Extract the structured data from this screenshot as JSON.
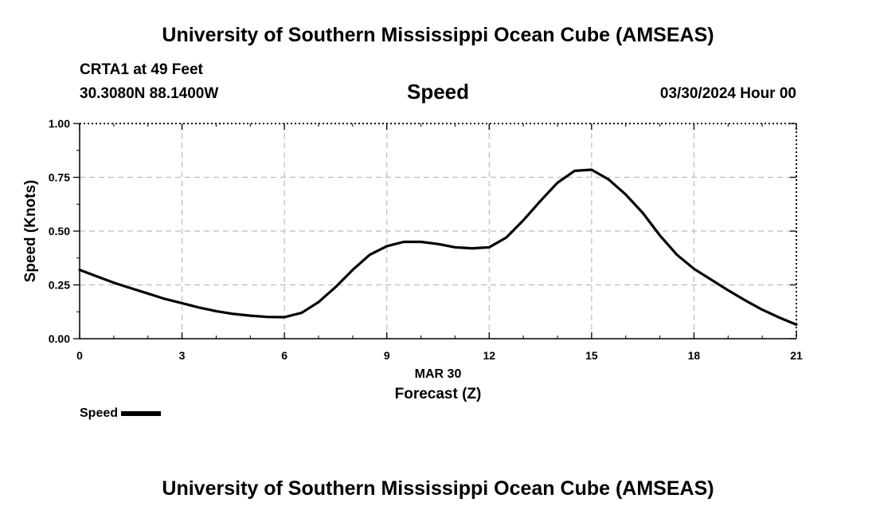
{
  "header": {
    "title": "University of Southern Mississippi Ocean Cube (AMSEAS)",
    "station": "CRTA1 at 49 Feet",
    "coordinates": "30.3080N  88.1400W",
    "datetime": "03/30/2024 Hour 00"
  },
  "footer": {
    "title": "University of Southern Mississippi Ocean Cube (AMSEAS)"
  },
  "chart_data": {
    "type": "line",
    "title": "Speed",
    "xlabel": "Forecast (Z)",
    "xlabel_date": "MAR 30",
    "ylabel": "Speed (Knots)",
    "xlim": [
      0,
      21
    ],
    "ylim": [
      0,
      1
    ],
    "xticks": [
      0,
      3,
      6,
      9,
      12,
      15,
      18,
      21
    ],
    "xtick_labels": [
      "0",
      "3",
      "6",
      "9",
      "12",
      "15",
      "18",
      "21"
    ],
    "yticks": [
      0,
      0.25,
      0.5,
      0.75,
      1.0
    ],
    "ytick_labels": [
      "0.00",
      "0.25",
      "0.50",
      "0.75",
      "1.00"
    ],
    "grid": true,
    "legend": "bottom-left",
    "series": [
      {
        "name": "Speed",
        "color": "#000000",
        "x": [
          0,
          0.5,
          1,
          1.5,
          2,
          2.5,
          3,
          3.5,
          4,
          4.5,
          5,
          5.5,
          6,
          6.5,
          7,
          7.5,
          8,
          8.5,
          9,
          9.5,
          10,
          10.5,
          11,
          11.5,
          12,
          12.5,
          13,
          13.5,
          14,
          14.5,
          15,
          15.5,
          16,
          16.5,
          17,
          17.5,
          18,
          18.5,
          19,
          19.5,
          20,
          20.5,
          21
        ],
        "values": [
          0.32,
          0.29,
          0.26,
          0.235,
          0.21,
          0.185,
          0.165,
          0.145,
          0.128,
          0.115,
          0.107,
          0.101,
          0.1,
          0.12,
          0.17,
          0.24,
          0.32,
          0.39,
          0.43,
          0.45,
          0.45,
          0.44,
          0.425,
          0.42,
          0.425,
          0.47,
          0.55,
          0.64,
          0.725,
          0.78,
          0.785,
          0.74,
          0.67,
          0.585,
          0.48,
          0.39,
          0.325,
          0.275,
          0.225,
          0.178,
          0.135,
          0.098,
          0.065
        ]
      }
    ]
  }
}
